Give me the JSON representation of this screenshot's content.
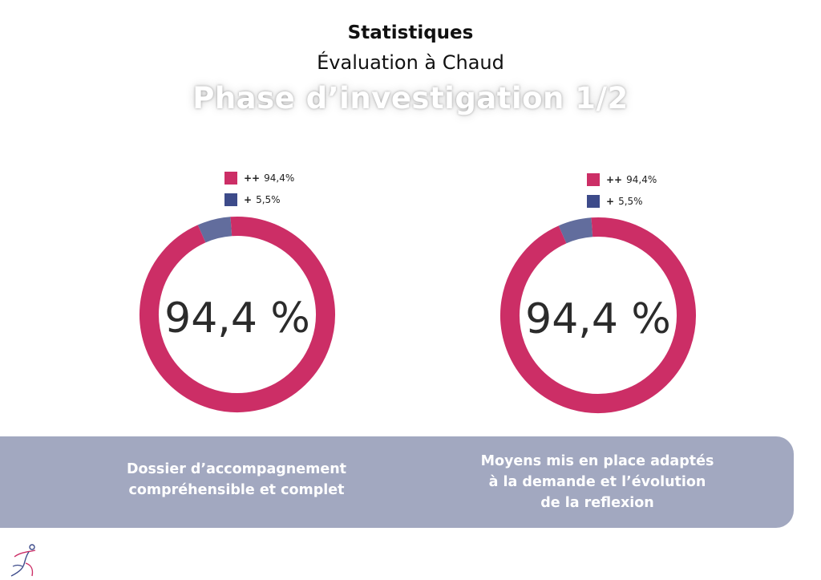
{
  "header": {
    "title": "Statistiques",
    "subtitle": "Évaluation à Chaud",
    "heading": "Phase d’investigation 1/2"
  },
  "colors": {
    "very_satisfied": "#cc2e66",
    "satisfied": "#626d9d",
    "legend_satisfied": "#3d4b8a",
    "band": "#a2a8c0"
  },
  "chart_data": [
    {
      "type": "pie",
      "center_label": "94,4 %",
      "legend": [
        {
          "symbol": "++",
          "label": "94,4%"
        },
        {
          "symbol": "+",
          "label": "5,5%"
        }
      ],
      "values": [
        94.4,
        5.5
      ],
      "caption": [
        "Dossier d’accompagnement",
        "compréhensible et complet"
      ]
    },
    {
      "type": "pie",
      "center_label": "94,4 %",
      "legend": [
        {
          "symbol": "++",
          "label": "94,4%"
        },
        {
          "symbol": "+",
          "label": "5,5%"
        }
      ],
      "values": [
        94.4,
        5.5
      ],
      "caption": [
        "Moyens mis en place adaptés",
        "à la demande et l’évolution",
        "de la reflexion"
      ]
    }
  ]
}
